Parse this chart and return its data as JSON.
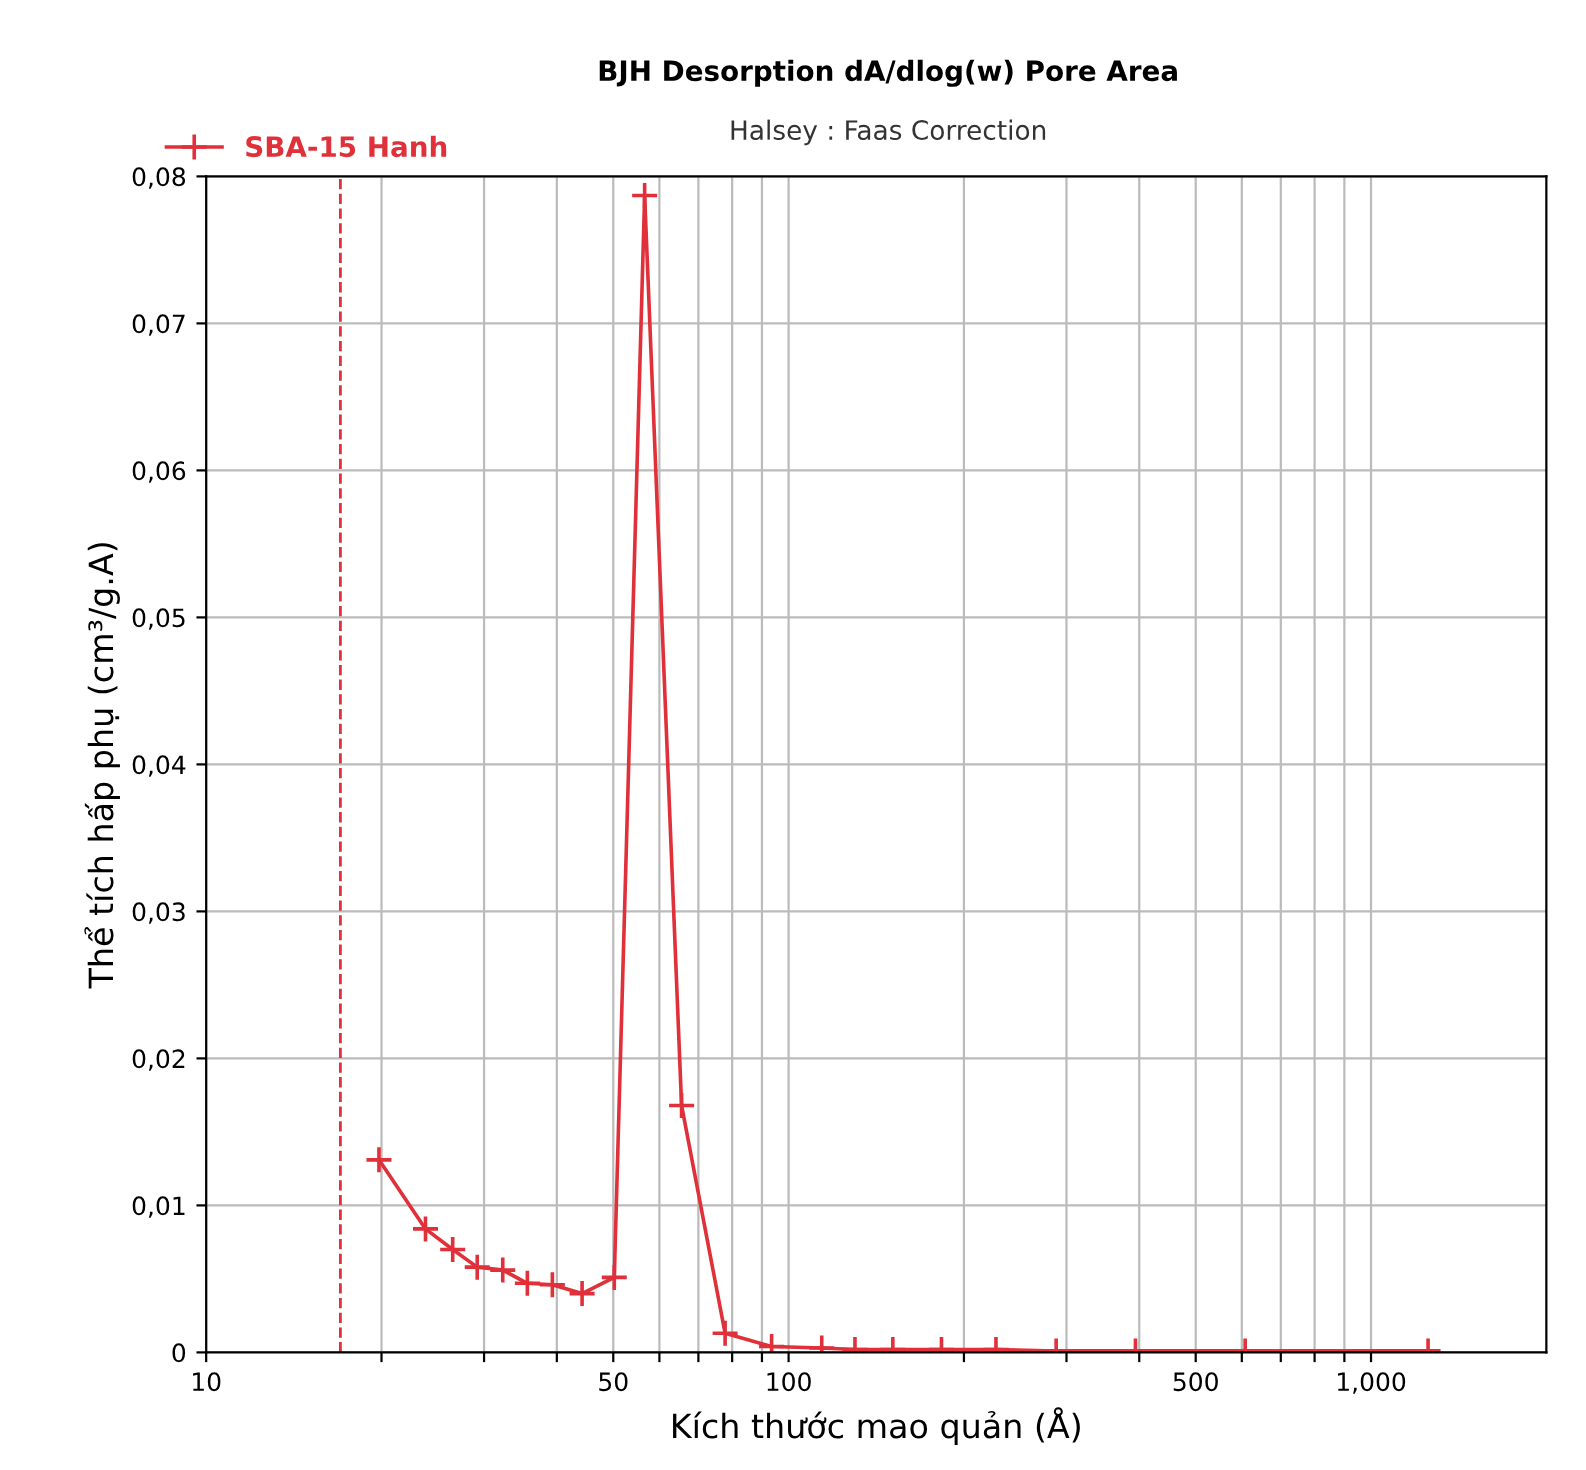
{
  "chart_data": {
    "type": "line",
    "title": "BJH Desorption dA/dlog(w) Pore Area",
    "subtitle": "Halsey : Faas Correction",
    "xlabel": "Kích thước mao quản (Å)",
    "ylabel": "Thể tích hấp phụ (cm³/g.A)",
    "log": "x",
    "xlim": [
      10,
      2000
    ],
    "ylim": [
      0,
      0.08
    ],
    "xticks": [
      10,
      {
        "value": 20,
        "label": null
      },
      {
        "value": 30,
        "label": null
      },
      {
        "value": 40,
        "label": null
      },
      50,
      {
        "value": 60,
        "label": null
      },
      {
        "value": 70,
        "label": null
      },
      {
        "value": 80,
        "label": null
      },
      {
        "value": 90,
        "label": null
      },
      100,
      {
        "value": 200,
        "label": null
      },
      {
        "value": 300,
        "label": null
      },
      {
        "value": 400,
        "label": null
      },
      500,
      {
        "value": 600,
        "label": null
      },
      {
        "value": 700,
        "label": null
      },
      {
        "value": 800,
        "label": null
      },
      {
        "value": 900,
        "label": null
      },
      {
        "value": 1000,
        "label": "1,000"
      }
    ],
    "yticks": [
      0,
      {
        "value": 0.01,
        "label": "0,01"
      },
      {
        "value": 0.02,
        "label": "0,02"
      },
      {
        "value": 0.03,
        "label": "0,03"
      },
      {
        "value": 0.04,
        "label": "0,04"
      },
      {
        "value": 0.05,
        "label": "0,05"
      },
      {
        "value": 0.06,
        "label": "0,06"
      },
      {
        "value": 0.07,
        "label": "0,07"
      },
      {
        "value": 0.08,
        "label": "0,08"
      }
    ],
    "grid": true,
    "legend": "top left",
    "marker": "cross",
    "line_style": "solid",
    "ref_lines": [
      {
        "axis": "x",
        "value": 17,
        "color": "#e0303a",
        "line_style": "dashed"
      }
    ],
    "series": [
      {
        "name": "SBA-15 Hanh",
        "color": "#e0303a",
        "x": [
          19.8,
          23.8,
          26.5,
          29.2,
          32.3,
          35.6,
          39.3,
          44.2,
          50.2,
          56.6,
          65.5,
          77.8,
          93.5,
          114,
          130,
          151,
          183,
          227,
          288,
          394,
          608,
          1253
        ],
        "values": [
          0.0131,
          0.0084,
          0.007,
          0.0058,
          0.0056,
          0.0047,
          0.0046,
          0.004,
          0.0051,
          0.0787,
          0.0168,
          0.0013,
          0.0004,
          0.0003,
          0.0002,
          0.0002,
          0.0002,
          0.0002,
          0.0001,
          0.0001,
          0.0001,
          0.0001
        ]
      }
    ]
  }
}
